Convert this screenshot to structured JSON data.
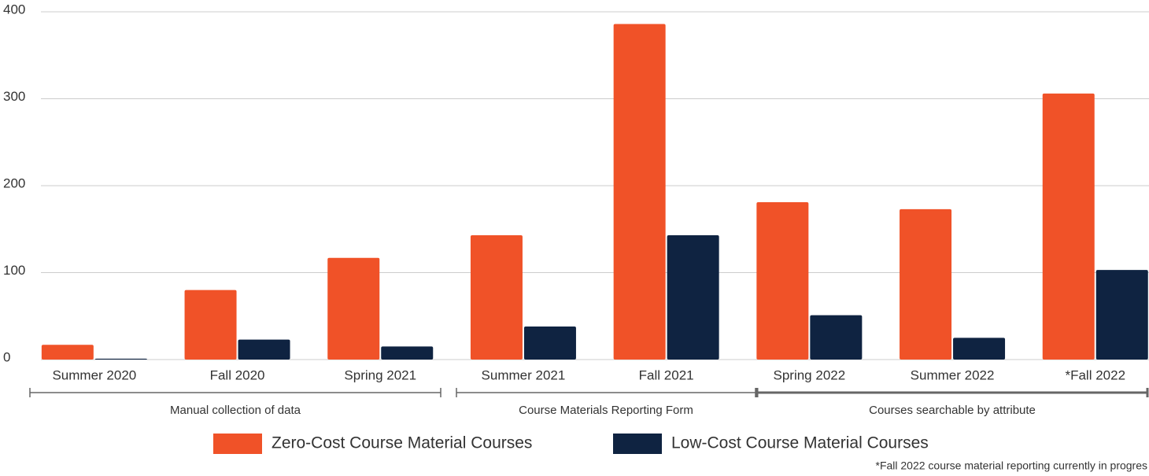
{
  "chart_data": {
    "type": "bar",
    "categories": [
      "Summer 2020",
      "Fall 2020",
      "Spring 2021",
      "Summer 2021",
      "Fall 2021",
      "Spring 2022",
      "Summer 2022",
      "*Fall 2022"
    ],
    "series": [
      {
        "name": "Zero-Cost Course Material Courses",
        "color": "#f05228",
        "values": [
          17,
          80,
          117,
          143,
          386,
          181,
          173,
          306
        ]
      },
      {
        "name": "Low-Cost Course Material Courses",
        "color": "#0f2341",
        "values": [
          1,
          23,
          15,
          38,
          143,
          51,
          25,
          103
        ]
      }
    ],
    "ylim": [
      0,
      400
    ],
    "yticks": [
      0,
      100,
      200,
      300,
      400
    ],
    "grid": true,
    "annotations": [
      "Manual collection of data",
      "Course Materials Reporting Form",
      "Courses searchable by attribute"
    ],
    "note": "*Fall 2022 course material reporting currently in progres"
  }
}
